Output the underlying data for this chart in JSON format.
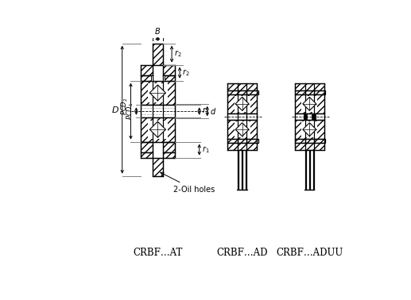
{
  "labels": {
    "at": "CRBF…AT",
    "ad": "CRBF…AD",
    "aduu": "CRBF…ADUU"
  },
  "bg_color": "#ffffff"
}
